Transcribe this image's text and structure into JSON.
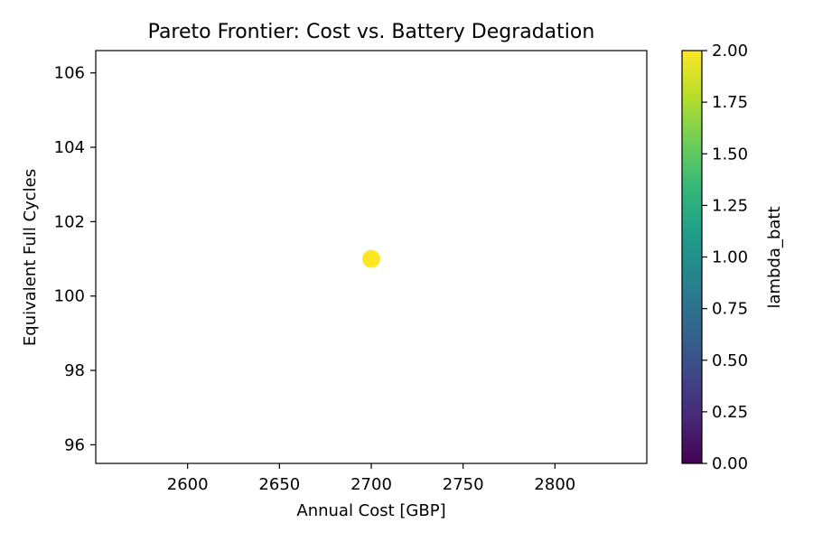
{
  "chart_data": {
    "type": "scatter",
    "title": "Pareto Frontier: Cost vs. Battery Degradation",
    "xlabel": "Annual Cost [GBP]",
    "ylabel": "Equivalent Full Cycles",
    "xlim": [
      2550,
      2850
    ],
    "ylim": [
      95.5,
      106.6
    ],
    "xticks": [
      2600,
      2650,
      2700,
      2750,
      2800
    ],
    "yticks": [
      96,
      98,
      100,
      102,
      104,
      106
    ],
    "points": [
      {
        "x": 2700,
        "y": 101,
        "lambda_batt": 2.0
      }
    ],
    "colorbar": {
      "label": "lambda_batt",
      "range": [
        0.0,
        2.0
      ],
      "colormap": "viridis",
      "ticks": [
        0.0,
        0.25,
        0.5,
        0.75,
        1.0,
        1.25,
        1.5,
        1.75,
        2.0
      ],
      "tick_labels": [
        "0.00",
        "0.25",
        "0.50",
        "0.75",
        "1.00",
        "1.25",
        "1.50",
        "1.75",
        "2.00"
      ]
    },
    "grid": false,
    "colors": {
      "viridis": [
        "#440154",
        "#482878",
        "#3e4989",
        "#31688e",
        "#26828e",
        "#1f9e89",
        "#35b779",
        "#6ece58",
        "#b5de2b",
        "#fde725"
      ]
    }
  }
}
